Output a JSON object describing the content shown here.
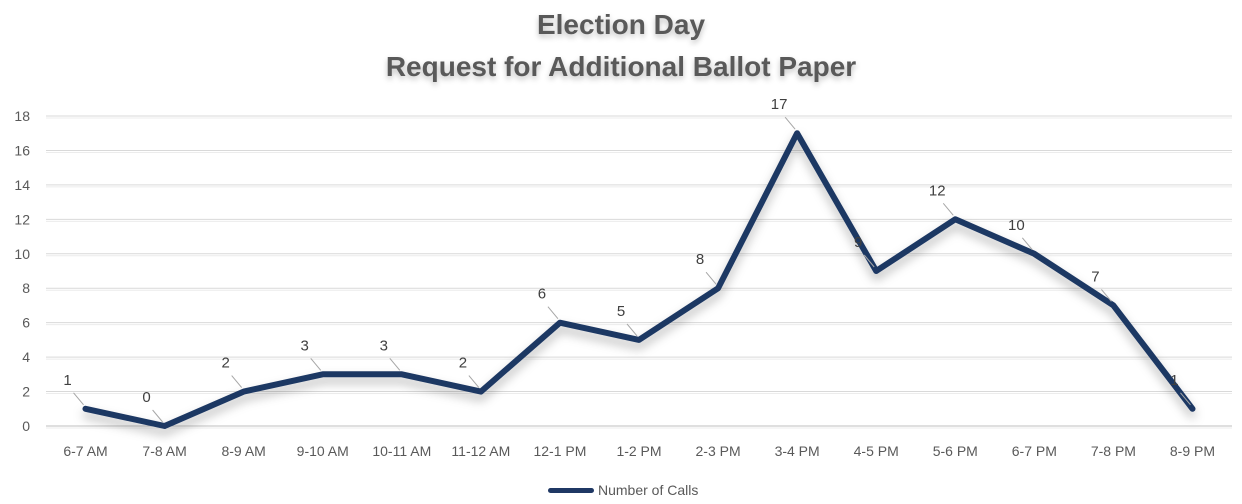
{
  "chart_data": {
    "type": "line",
    "title": "Election Day",
    "subtitle": "Request for Additional Ballot Paper",
    "xlabel": "",
    "ylabel": "",
    "categories": [
      "6-7 AM",
      "7-8 AM",
      "8-9 AM",
      "9-10 AM",
      "10-11 AM",
      "11-12 AM",
      "12-1 PM",
      "1-2 PM",
      "2-3 PM",
      "3-4 PM",
      "4-5 PM",
      "5-6 PM",
      "6-7 PM",
      "7-8 PM",
      "8-9 PM"
    ],
    "series": [
      {
        "name": "Number of Calls",
        "values": [
          1,
          0,
          2,
          3,
          3,
          2,
          6,
          5,
          8,
          17,
          9,
          12,
          10,
          7,
          1
        ],
        "color": "#1F3864"
      }
    ],
    "ylim": [
      0,
      18
    ],
    "yticks": [
      0,
      2,
      4,
      6,
      8,
      10,
      12,
      14,
      16,
      18
    ],
    "grid": true,
    "legend": "bottom-center",
    "data_labels": true
  }
}
